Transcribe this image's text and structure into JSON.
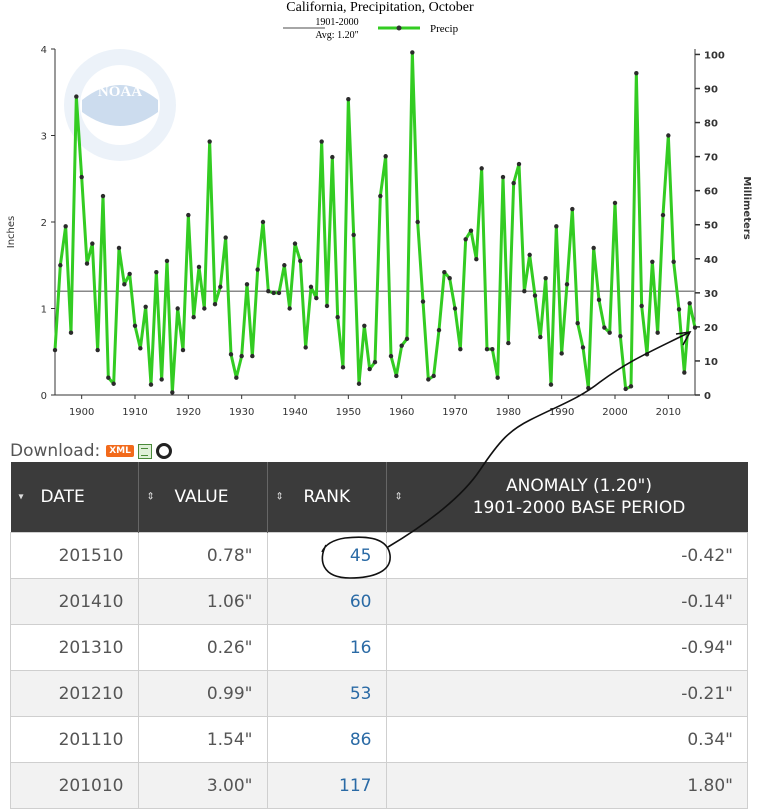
{
  "chart_data": {
    "type": "line",
    "title": "California, Precipitation, October",
    "legend": {
      "base_label_line1": "1901-2000",
      "base_label_line2": "Avg: 1.20\"",
      "series_label": "Precip"
    },
    "ylabel_left": "Inches",
    "ylabel_right": "Millimeters",
    "x_start": 1895,
    "x_ticks": [
      "1900",
      "1910",
      "1920",
      "1930",
      "1940",
      "1950",
      "1960",
      "1970",
      "1980",
      "1990",
      "2000",
      "2010"
    ],
    "y_ticks_left": [
      "0",
      "1",
      "2",
      "3",
      "4"
    ],
    "y_ticks_right": [
      "0",
      "10",
      "20",
      "30",
      "40",
      "50",
      "60",
      "70",
      "80",
      "90",
      "100"
    ],
    "xlim": [
      1895,
      2015
    ],
    "ylim": [
      0,
      4
    ],
    "average": 1.2,
    "values": [
      0.52,
      1.5,
      1.95,
      0.72,
      3.45,
      2.52,
      1.52,
      1.75,
      0.52,
      2.3,
      0.2,
      0.13,
      1.7,
      1.28,
      1.4,
      0.8,
      0.54,
      1.02,
      0.12,
      1.42,
      0.18,
      1.55,
      0.03,
      1.0,
      0.52,
      2.08,
      0.9,
      1.48,
      1.0,
      2.93,
      1.05,
      1.25,
      1.82,
      0.47,
      0.2,
      0.45,
      1.28,
      0.45,
      1.45,
      2.0,
      1.2,
      1.18,
      1.18,
      1.5,
      1.0,
      1.75,
      1.55,
      0.55,
      1.25,
      1.12,
      2.93,
      1.03,
      2.75,
      0.9,
      0.32,
      3.42,
      1.85,
      0.13,
      0.8,
      0.3,
      0.38,
      2.3,
      2.76,
      0.45,
      0.22,
      0.57,
      0.65,
      3.96,
      2.0,
      1.08,
      0.18,
      0.22,
      0.75,
      1.42,
      1.35,
      1.0,
      0.53,
      1.8,
      1.9,
      1.57,
      2.62,
      0.53,
      0.53,
      0.2,
      2.52,
      0.6,
      2.45,
      2.67,
      1.2,
      1.62,
      1.15,
      0.67,
      1.35,
      0.12,
      1.95,
      0.48,
      1.28,
      2.15,
      0.83,
      0.55,
      0.08,
      1.7,
      1.1,
      0.78,
      0.72,
      2.22,
      0.68,
      0.07,
      0.1,
      3.72,
      1.03,
      0.47,
      1.54,
      0.72,
      2.08,
      3.0,
      1.54,
      0.99,
      0.26,
      1.06,
      0.78
    ]
  },
  "download": {
    "label": "Download:",
    "xml": "XML"
  },
  "table": {
    "headers": {
      "date": "DATE",
      "value": "VALUE",
      "rank": "RANK",
      "anomaly_line1": "ANOMALY (1.20\")",
      "anomaly_line2": "1901-2000 BASE PERIOD"
    },
    "rows": [
      {
        "date": "201510",
        "value": "0.78\"",
        "rank": "45",
        "anomaly": "-0.42\""
      },
      {
        "date": "201410",
        "value": "1.06\"",
        "rank": "60",
        "anomaly": "-0.14\""
      },
      {
        "date": "201310",
        "value": "0.26\"",
        "rank": "16",
        "anomaly": "-0.94\""
      },
      {
        "date": "201210",
        "value": "0.99\"",
        "rank": "53",
        "anomaly": "-0.21\""
      },
      {
        "date": "201110",
        "value": "1.54\"",
        "rank": "86",
        "anomaly": "0.34\""
      },
      {
        "date": "201010",
        "value": "3.00\"",
        "rank": "117",
        "anomaly": "1.80\""
      }
    ]
  },
  "logo_text": "NOAA"
}
